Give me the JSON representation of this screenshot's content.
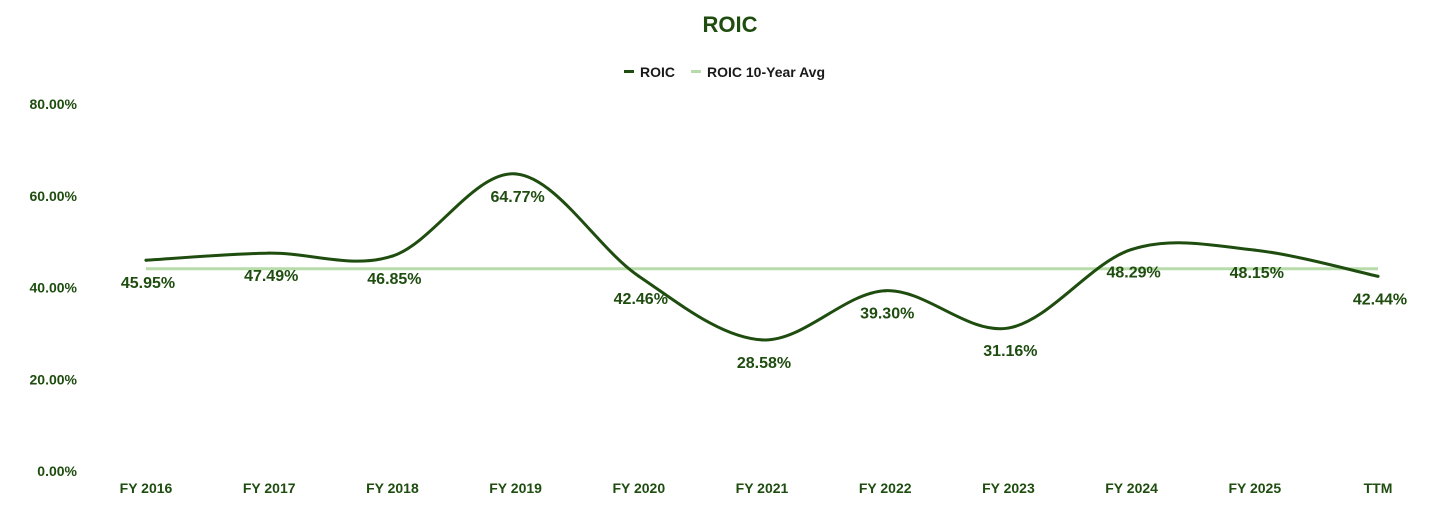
{
  "colors": {
    "title": "#1e4d0f",
    "roic_line": "#1e4d0f",
    "avg_line": "#b7dcaa",
    "text": "#1e4d0f"
  },
  "chart_data": {
    "type": "line",
    "title": "ROIC",
    "categories": [
      "FY 2016",
      "FY 2017",
      "FY 2018",
      "FY 2019",
      "FY 2020",
      "FY 2021",
      "FY 2022",
      "FY 2023",
      "FY 2024",
      "FY 2025",
      "TTM"
    ],
    "series": [
      {
        "name": "ROIC",
        "values": [
          45.95,
          47.49,
          46.85,
          64.77,
          42.46,
          28.58,
          39.3,
          31.16,
          48.29,
          48.15,
          42.44
        ],
        "labels": [
          "45.95%",
          "47.49%",
          "46.85%",
          "64.77%",
          "42.46%",
          "28.58%",
          "39.30%",
          "31.16%",
          "48.29%",
          "48.15%",
          "42.44%"
        ]
      },
      {
        "name": "ROIC 10-Year Avg",
        "values": [
          44.1,
          44.1,
          44.1,
          44.1,
          44.1,
          44.1,
          44.1,
          44.1,
          44.1,
          44.1,
          44.1
        ]
      }
    ],
    "ylim": [
      0,
      80
    ],
    "yticks": [
      "0.00%",
      "20.00%",
      "40.00%",
      "60.00%",
      "80.00%"
    ],
    "legend_position": "top-center",
    "grid": false
  }
}
